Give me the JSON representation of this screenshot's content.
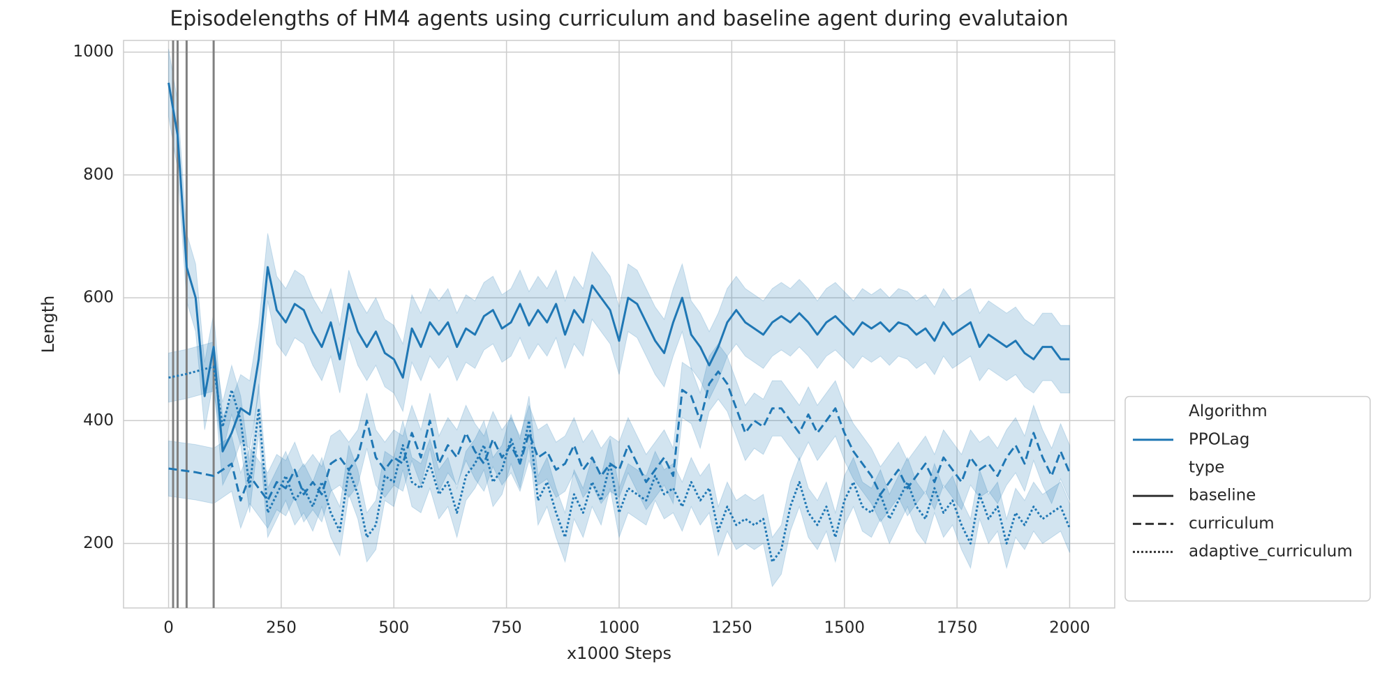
{
  "chart_data": {
    "type": "line",
    "title": "Episodelengths of HM4 agents using curriculum and baseline agent during evalutaion",
    "x_label": "x1000 Steps",
    "y_label": "Length",
    "xlim": [
      -100,
      2100
    ],
    "ylim": [
      95,
      1019
    ],
    "xticks": [
      0,
      250,
      500,
      750,
      1000,
      1250,
      1500,
      1750,
      2000
    ],
    "yticks": [
      200,
      400,
      600,
      800,
      1000
    ],
    "grid": true,
    "legend_loc": "outside-lower-right",
    "vlines": [
      10,
      20,
      40,
      100
    ],
    "vline_color": "#808080",
    "hue": {
      "title": "Algorithm",
      "name": "PPOLag",
      "color": "#1f77b4"
    },
    "style_title": "type",
    "x": [
      0,
      20,
      40,
      60,
      80,
      100,
      120,
      140,
      160,
      180,
      200,
      220,
      240,
      260,
      280,
      300,
      320,
      340,
      360,
      380,
      400,
      420,
      440,
      460,
      480,
      500,
      520,
      540,
      560,
      580,
      600,
      620,
      640,
      660,
      680,
      700,
      720,
      740,
      760,
      780,
      800,
      820,
      840,
      860,
      880,
      900,
      920,
      940,
      960,
      980,
      1000,
      1020,
      1040,
      1060,
      1080,
      1100,
      1120,
      1140,
      1160,
      1180,
      1200,
      1220,
      1240,
      1260,
      1280,
      1300,
      1320,
      1340,
      1360,
      1380,
      1400,
      1420,
      1440,
      1460,
      1480,
      1500,
      1520,
      1540,
      1560,
      1580,
      1600,
      1620,
      1640,
      1660,
      1680,
      1700,
      1720,
      1740,
      1760,
      1780,
      1800,
      1820,
      1840,
      1860,
      1880,
      1900,
      1920,
      1940,
      1960,
      1980,
      2000
    ],
    "series": [
      {
        "name": "baseline",
        "dash": "solid",
        "ci": 55,
        "values": [
          950,
          865,
          650,
          600,
          440,
          520,
          350,
          380,
          420,
          410,
          500,
          650,
          580,
          560,
          590,
          580,
          545,
          520,
          560,
          500,
          590,
          545,
          520,
          545,
          510,
          500,
          470,
          550,
          520,
          560,
          540,
          560,
          520,
          550,
          540,
          570,
          580,
          550,
          560,
          590,
          555,
          580,
          560,
          590,
          540,
          580,
          560,
          620,
          600,
          580,
          530,
          600,
          590,
          560,
          530,
          510,
          560,
          600,
          540,
          520,
          490,
          520,
          560,
          580,
          560,
          550,
          540,
          560,
          570,
          560,
          575,
          560,
          540,
          560,
          570,
          555,
          540,
          560,
          550,
          560,
          545,
          560,
          555,
          540,
          550,
          530,
          560,
          540,
          550,
          560,
          520,
          540,
          530,
          520,
          530,
          510,
          500,
          520,
          520,
          500,
          500
        ]
      },
      {
        "name": "curriculum",
        "dash": "dashed",
        "ci": 45,
        "values": [
          322,
          320,
          318,
          316,
          313,
          310,
          320,
          330,
          270,
          310,
          290,
          270,
          300,
          290,
          320,
          280,
          300,
          280,
          330,
          340,
          320,
          340,
          400,
          340,
          320,
          340,
          330,
          380,
          340,
          400,
          330,
          360,
          340,
          380,
          350,
          330,
          370,
          340,
          360,
          330,
          380,
          340,
          350,
          320,
          330,
          360,
          320,
          340,
          310,
          330,
          320,
          360,
          330,
          300,
          320,
          340,
          310,
          450,
          440,
          400,
          460,
          480,
          460,
          420,
          380,
          400,
          390,
          420,
          420,
          400,
          380,
          410,
          380,
          400,
          420,
          380,
          350,
          330,
          310,
          280,
          300,
          320,
          290,
          310,
          330,
          300,
          340,
          320,
          300,
          340,
          320,
          330,
          310,
          340,
          360,
          330,
          380,
          340,
          310,
          350,
          315
        ]
      },
      {
        "name": "adaptive_curriculum",
        "dash": "dotted",
        "ci": 40,
        "values": [
          470,
          473,
          476,
          480,
          484,
          488,
          390,
          450,
          400,
          290,
          420,
          250,
          280,
          310,
          270,
          290,
          260,
          300,
          250,
          220,
          320,
          280,
          210,
          230,
          310,
          300,
          360,
          300,
          290,
          330,
          280,
          300,
          250,
          310,
          330,
          360,
          300,
          320,
          370,
          330,
          400,
          270,
          300,
          250,
          210,
          280,
          250,
          300,
          270,
          330,
          250,
          290,
          280,
          270,
          310,
          280,
          290,
          260,
          300,
          270,
          290,
          220,
          260,
          230,
          240,
          230,
          240,
          170,
          190,
          260,
          300,
          250,
          230,
          260,
          210,
          270,
          300,
          260,
          250,
          280,
          240,
          270,
          300,
          260,
          240,
          290,
          250,
          270,
          230,
          200,
          280,
          240,
          260,
          200,
          250,
          230,
          260,
          240,
          250,
          260,
          225
        ]
      }
    ]
  }
}
